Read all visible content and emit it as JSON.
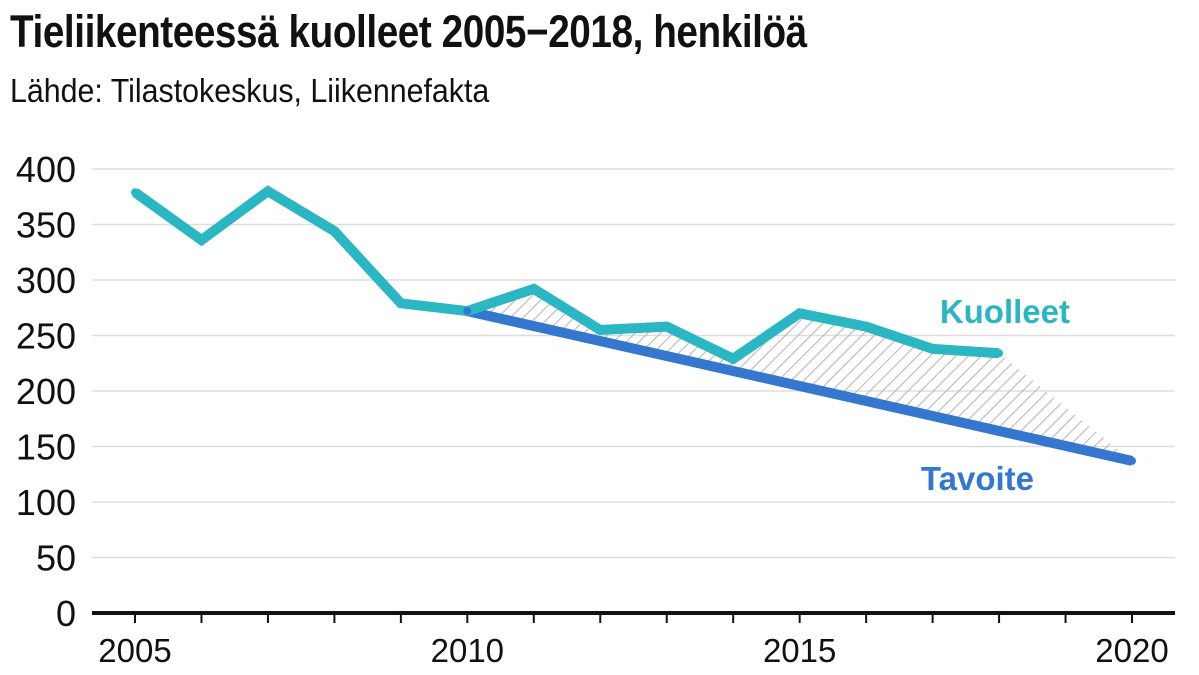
{
  "title": "Tieliikenteessä kuolleet 2005−2018, henkilöä",
  "subtitle": "Lähde: Tilastokeskus, Liikennefakta",
  "colors": {
    "actual": "#2ab7c3",
    "target": "#3477cf",
    "hatch": "#b8b8b8",
    "grid": "#dddddd",
    "axis": "#111111"
  },
  "chart_data": {
    "type": "line",
    "title": "Tieliikenteessä kuolleet 2005−2018, henkilöä",
    "xlabel": "",
    "ylabel": "",
    "xlim": [
      2005,
      2020
    ],
    "ylim": [
      0,
      400
    ],
    "yticks": [
      0,
      50,
      100,
      150,
      200,
      250,
      300,
      350,
      400
    ],
    "xtick_labels": [
      2005,
      2010,
      2015,
      2020
    ],
    "grid": true,
    "legend": "inline labels",
    "series": [
      {
        "name": "Kuolleet",
        "x": [
          2005,
          2006,
          2007,
          2008,
          2009,
          2010,
          2011,
          2012,
          2013,
          2014,
          2015,
          2016,
          2017,
          2018
        ],
        "values": [
          379,
          336,
          380,
          344,
          279,
          272,
          292,
          255,
          258,
          229,
          270,
          258,
          238,
          234
        ]
      },
      {
        "name": "Tavoite",
        "x": [
          2010,
          2020
        ],
        "values": [
          272,
          137
        ]
      }
    ]
  }
}
